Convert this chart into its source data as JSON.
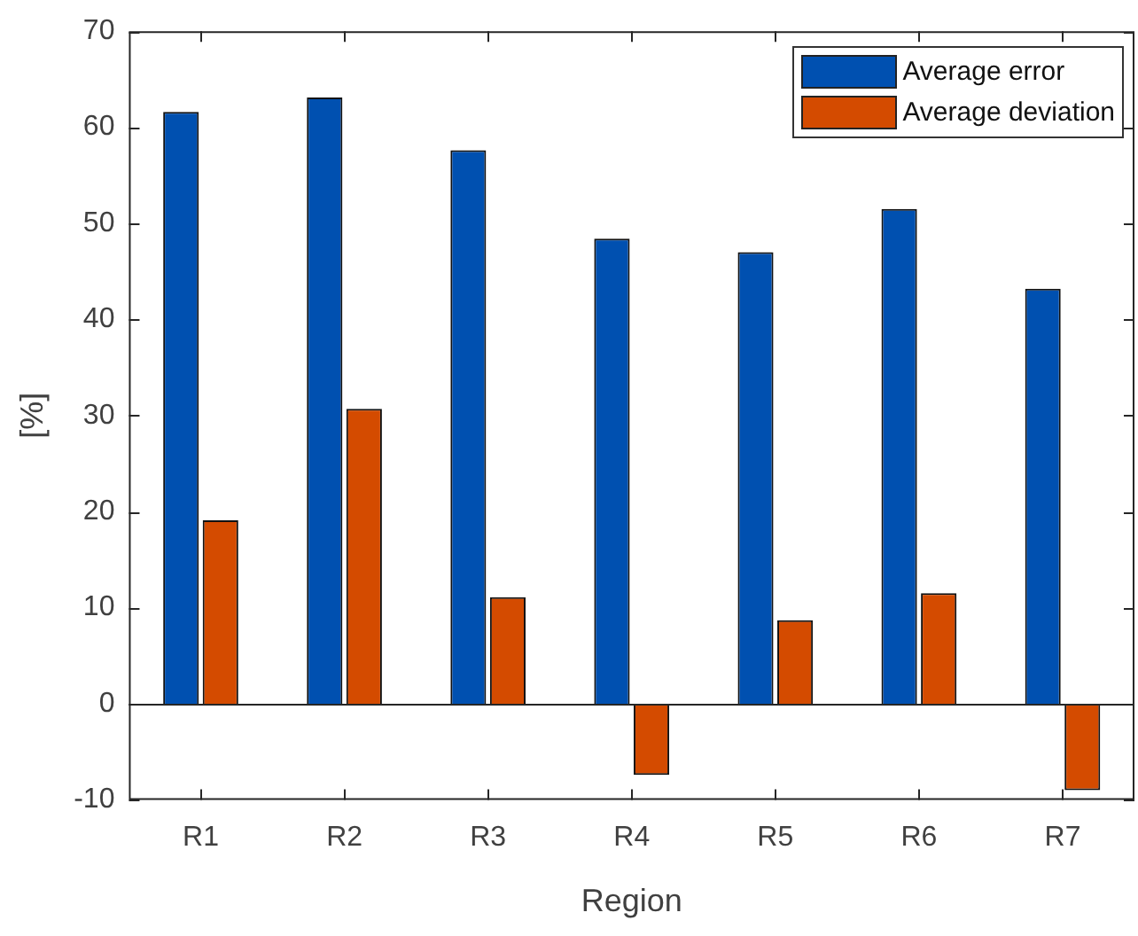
{
  "chart_data": {
    "type": "bar",
    "xlabel": "Region",
    "ylabel": "[%]",
    "categories": [
      "R1",
      "R2",
      "R3",
      "R4",
      "R5",
      "R6",
      "R7"
    ],
    "series": [
      {
        "name": "Average error",
        "color": "#0050b0",
        "values": [
          61.6,
          63.1,
          57.6,
          48.4,
          47.0,
          51.5,
          43.2
        ]
      },
      {
        "name": "Average deviation",
        "color": "#d44b00",
        "values": [
          19.1,
          30.7,
          11.1,
          -7.4,
          8.7,
          11.5,
          -9.0
        ]
      }
    ],
    "ylim": [
      -10,
      70
    ],
    "yticks": [
      -10,
      0,
      10,
      20,
      30,
      40,
      50,
      60,
      70
    ],
    "grid": false,
    "ref_lines": [
      {
        "axis": "y",
        "value": 0,
        "color": "#262626"
      }
    ],
    "legend": "top right"
  }
}
